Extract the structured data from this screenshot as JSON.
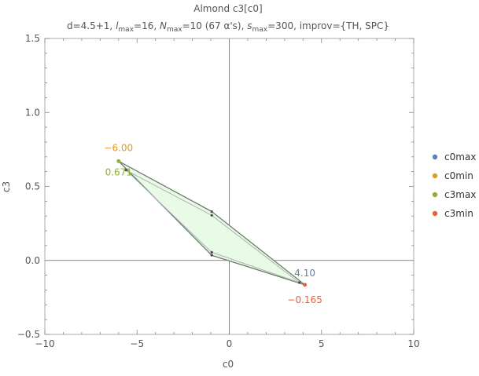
{
  "chart_data": {
    "type": "scatter",
    "title": "Almond c3[c0]",
    "subtitle": {
      "d": "d=4.5+1, ",
      "l_sym": "l",
      "l_sub": "max",
      "l_val": "=16, ",
      "N_sym": "N",
      "N_sub": "max",
      "N_val": "=10 (67 α's), ",
      "s_sym": "s",
      "s_sub": "max",
      "s_val": "=300, improv={TH, SPC}"
    },
    "xlabel": "c0",
    "ylabel": "c3",
    "xlim": [
      -10,
      10
    ],
    "ylim": [
      -0.5,
      1.5
    ],
    "x_ticks": [
      {
        "value": -10,
        "label": "−10"
      },
      {
        "value": -5,
        "label": "−5"
      },
      {
        "value": 0,
        "label": "0"
      },
      {
        "value": 5,
        "label": "5"
      },
      {
        "value": 10,
        "label": "10"
      }
    ],
    "y_ticks": [
      {
        "value": -0.5,
        "label": "−0.5"
      },
      {
        "value": 0.0,
        "label": "0.0"
      },
      {
        "value": 0.5,
        "label": "0.5"
      },
      {
        "value": 1.0,
        "label": "1.0"
      },
      {
        "value": 1.5,
        "label": "1.5"
      }
    ],
    "region": {
      "fill": "#e9fbe6",
      "outer_polygon": [
        {
          "x": -6.0,
          "y": 0.671
        },
        {
          "x": -0.95,
          "y": 0.33
        },
        {
          "x": 4.1,
          "y": -0.165
        },
        {
          "x": -0.95,
          "y": 0.035
        }
      ],
      "inner_polygon": [
        {
          "x": -5.6,
          "y": 0.61
        },
        {
          "x": -0.95,
          "y": 0.305
        },
        {
          "x": 3.8,
          "y": -0.15
        },
        {
          "x": -0.95,
          "y": 0.055
        }
      ]
    },
    "series": [
      {
        "name": "c0max",
        "color": "#5e81b5",
        "x": 4.1,
        "y": -0.165,
        "label": "4.10"
      },
      {
        "name": "c0min",
        "color": "#e19c24",
        "x": -6.0,
        "y": 0.671,
        "label": "−6.00"
      },
      {
        "name": "c3max",
        "color": "#8fb032",
        "x": -6.0,
        "y": 0.671,
        "label": "0.671"
      },
      {
        "name": "c3min",
        "color": "#eb6235",
        "x": 4.1,
        "y": -0.165,
        "label": "−0.165"
      }
    ],
    "grid": false,
    "legend_position": "right"
  }
}
